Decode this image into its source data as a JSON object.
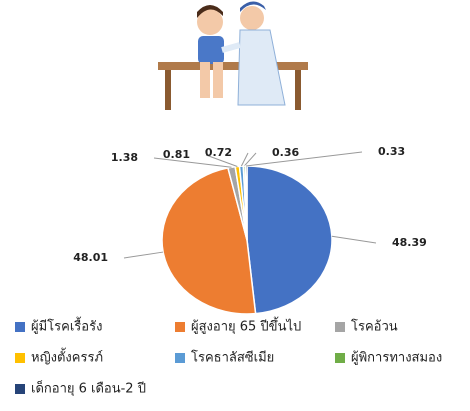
{
  "chart_data": {
    "type": "pie",
    "categories": [
      "ผู้มีโรคเรื้อรัง",
      "ผู้สูงอายุ 65 ปีขึ้นไป",
      "โรคอ้วน",
      "หญิงตั้งครรภ์",
      "โรคธาลัสซีเมีย",
      "ผู้พิการทางสมอง",
      "เด็กอายุ 6 เดือน-2 ปี"
    ],
    "values": [
      48.39,
      48.01,
      1.38,
      0.81,
      0.72,
      0.36,
      0.33
    ],
    "colors": [
      "#4472c4",
      "#ed7d31",
      "#a5a5a5",
      "#ffc000",
      "#5b9bd5",
      "#70ad47",
      "#264478"
    ]
  }
}
